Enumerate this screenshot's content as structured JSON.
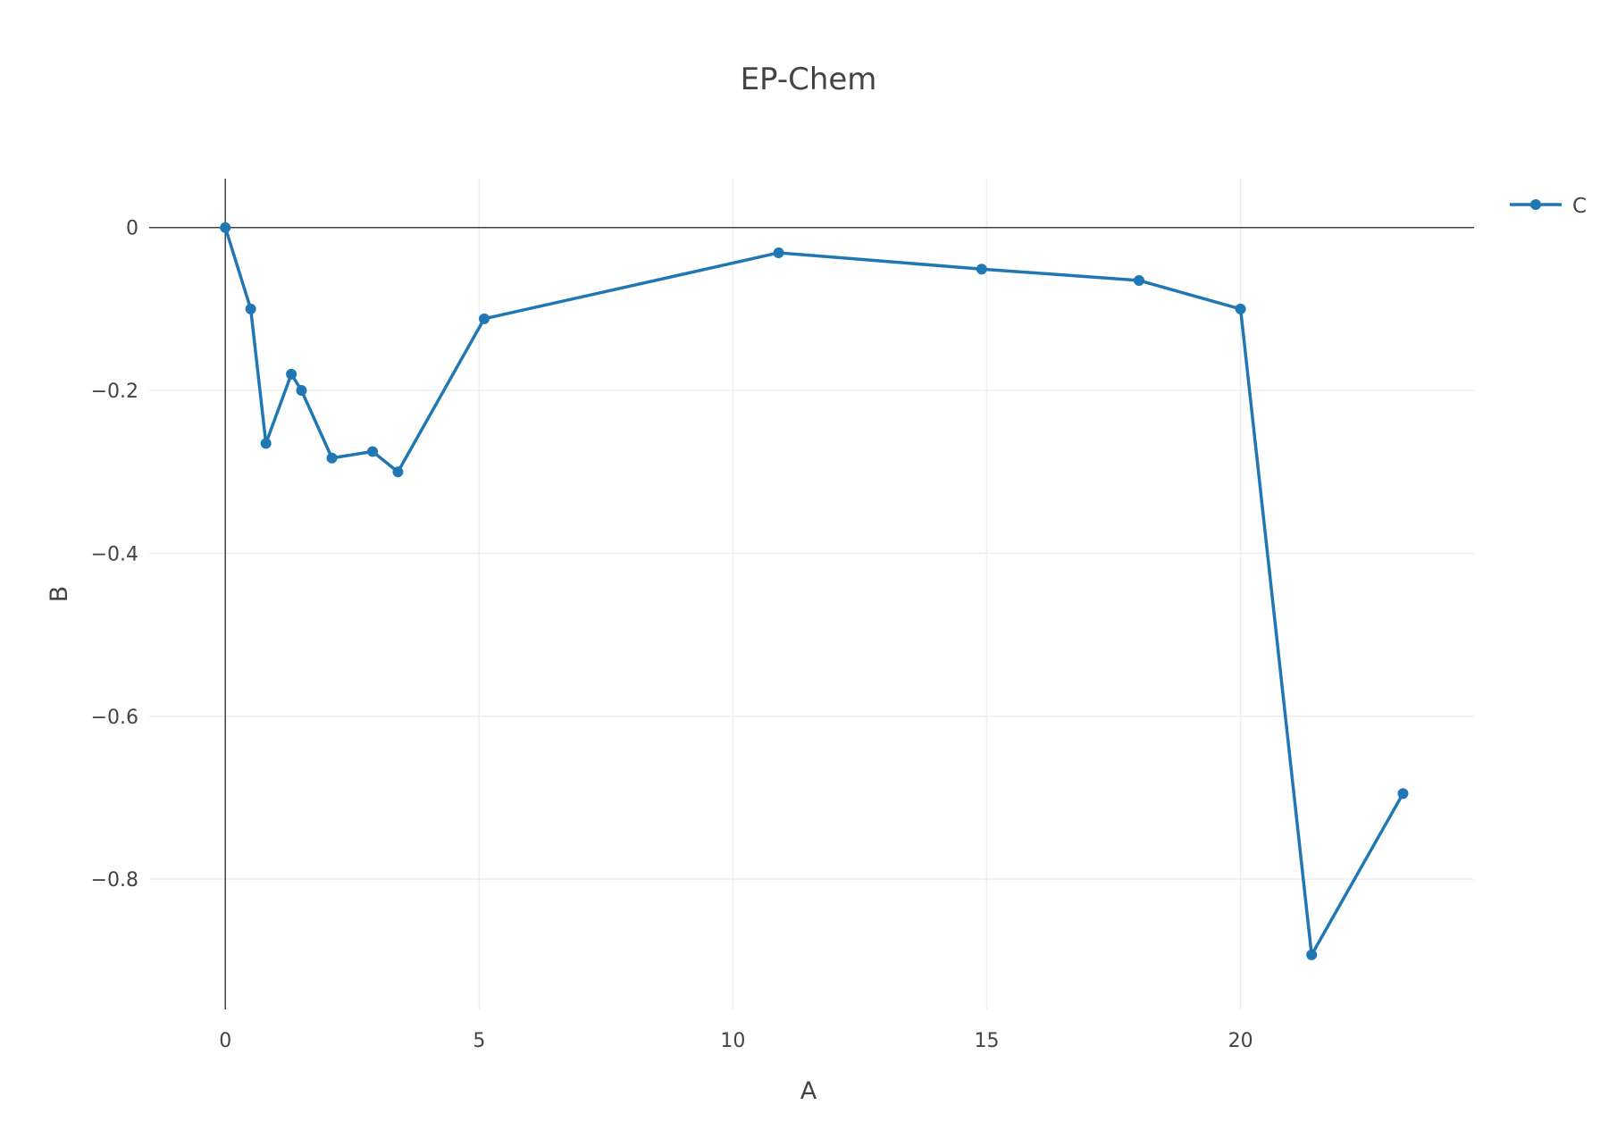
{
  "chart_data": {
    "type": "line",
    "title": "EP-Chem",
    "xlabel": "A",
    "ylabel": "B",
    "xlim": [
      -1.5,
      24.6
    ],
    "ylim": [
      -0.96,
      0.06
    ],
    "xticks": [
      0,
      5,
      10,
      15,
      20
    ],
    "yticks": [
      0,
      -0.2,
      -0.4,
      -0.6,
      -0.8
    ],
    "ytick_labels": [
      "0",
      "−0.2",
      "−0.4",
      "−0.6",
      "−0.8"
    ],
    "grid": true,
    "legend_position": "top-right",
    "series": [
      {
        "name": "C",
        "color": "#1f77b4",
        "mode": "lines+markers",
        "x": [
          0,
          0.5,
          0.8,
          1.3,
          1.5,
          2.1,
          2.9,
          3.4,
          5.1,
          10.9,
          14.9,
          18.0,
          20.0,
          21.4,
          23.2
        ],
        "y": [
          0,
          -0.1,
          -0.265,
          -0.18,
          -0.2,
          -0.283,
          -0.275,
          -0.3,
          -0.112,
          -0.031,
          -0.051,
          -0.065,
          -0.1,
          -0.893,
          -0.695
        ]
      }
    ]
  }
}
